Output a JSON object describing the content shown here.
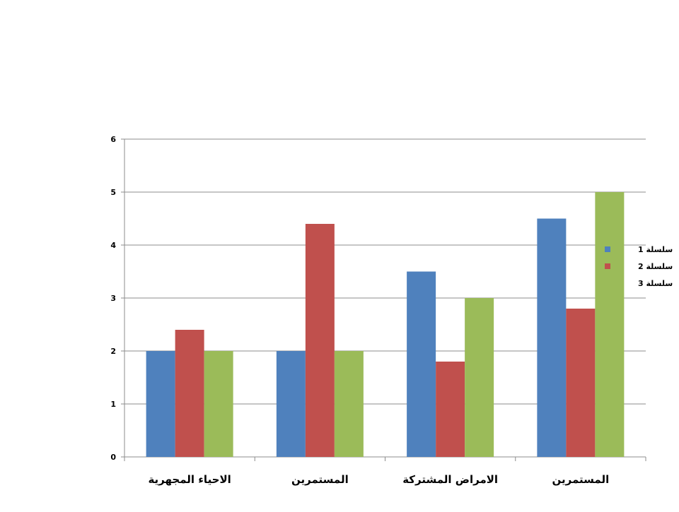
{
  "chart_data": {
    "type": "bar",
    "title": "",
    "xlabel": "",
    "ylabel": "",
    "ylim": [
      0,
      6
    ],
    "yticks": [
      0,
      1,
      2,
      3,
      4,
      5,
      6
    ],
    "grid": true,
    "legend_position": "right",
    "categories": [
      "الاحياء المجهرية",
      "المستمرين",
      "الامراض المشتركة",
      "المستمرين"
    ],
    "series": [
      {
        "name": "سلسلة 1",
        "color": "#4F81BD",
        "values": [
          2,
          2,
          3.5,
          4.5
        ]
      },
      {
        "name": "سلسلة 2",
        "color": "#C0504D",
        "values": [
          2.4,
          4.4,
          1.8,
          2.8
        ]
      },
      {
        "name": "سلسلة 3",
        "color": "#9BBB59",
        "values": [
          2,
          2,
          3,
          5
        ]
      }
    ]
  }
}
